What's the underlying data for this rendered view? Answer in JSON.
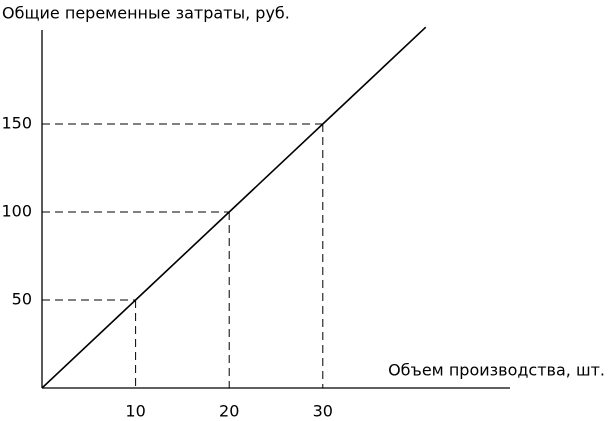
{
  "chart_data": {
    "type": "line",
    "ylabel": "Общие переменные затраты, руб.",
    "xlabel": "Объем производства, шт.",
    "x": [
      0,
      10,
      20,
      30,
      41
    ],
    "series": [
      {
        "values": [
          0,
          50,
          100,
          150,
          205
        ],
        "color": "#000000"
      }
    ],
    "xlim": [
      0,
      50
    ],
    "ylim": [
      0,
      200
    ],
    "xticks": [
      10,
      20,
      30
    ],
    "yticks": [
      50,
      100,
      150
    ]
  }
}
